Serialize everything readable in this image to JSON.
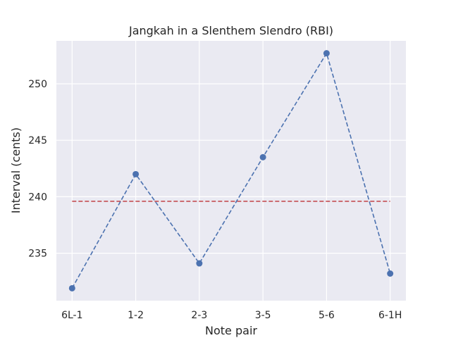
{
  "chart_data": {
    "type": "line",
    "title": "Jangkah in a Slenthem Slendro (RBI)",
    "xlabel": "Note pair",
    "ylabel": "Interval (cents)",
    "categories": [
      "6L-1",
      "1-2",
      "2-3",
      "3-5",
      "5-6",
      "6-1H"
    ],
    "series": [
      {
        "values": [
          231.9,
          242.0,
          234.1,
          243.5,
          252.7,
          233.2
        ],
        "color": "#4c72b0",
        "line_style": "dashed",
        "marker": "circle"
      }
    ],
    "reference_line": {
      "value": 239.6,
      "color": "#c44e52",
      "line_style": "dashed"
    },
    "yticks": [
      235,
      240,
      245,
      250
    ],
    "ylim": [
      230.8,
      253.8
    ],
    "grid": true,
    "background": "#eaeaf2"
  }
}
